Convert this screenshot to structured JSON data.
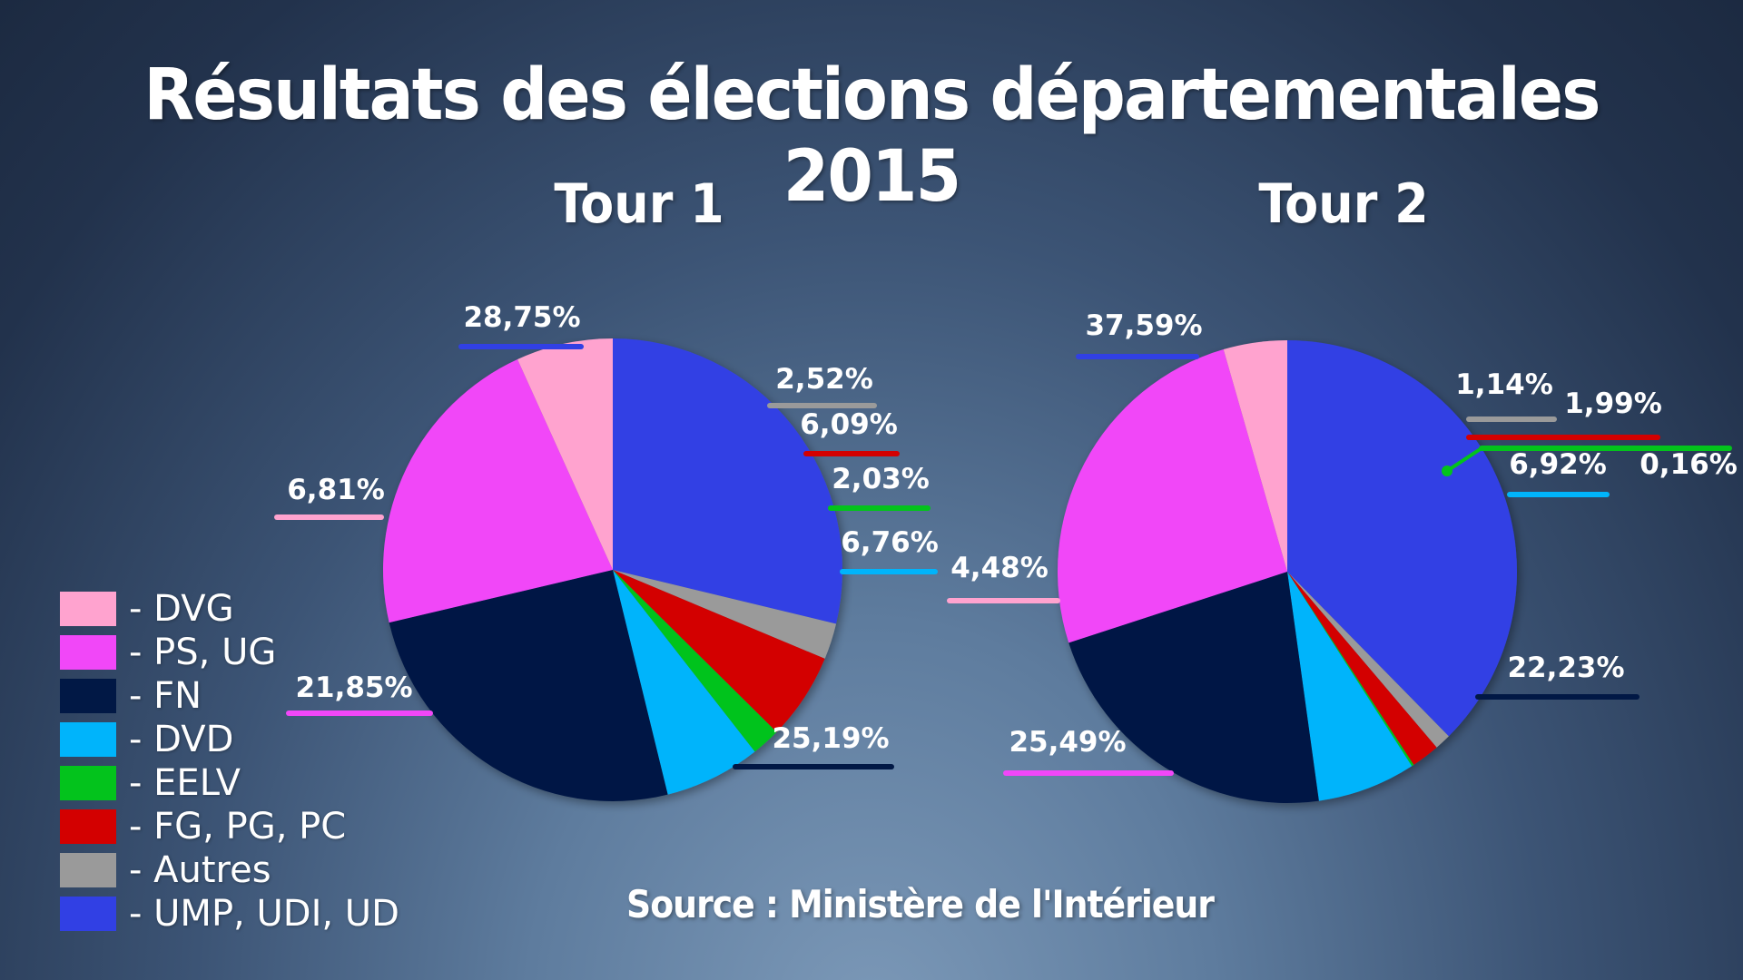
{
  "title": "Résultats des élections départementales 2015",
  "source": "Source : Ministère de l'Intérieur",
  "legend": [
    {
      "label": "- DVG",
      "color": "#ffa3cf"
    },
    {
      "label": "- PS, UG",
      "color": "#f147f8"
    },
    {
      "label": "- FN",
      "color": "#011845"
    },
    {
      "label": "- DVD",
      "color": "#00b4fb"
    },
    {
      "label": "- EELV",
      "color": "#03c31c"
    },
    {
      "label": "- FG, PG, PC",
      "color": "#d30000"
    },
    {
      "label": "- Autres",
      "color": "#9a9a9a"
    },
    {
      "label": "- UMP, UDI, UD",
      "color": "#3140e4"
    }
  ],
  "chart_data": [
    {
      "type": "pie",
      "title": "Tour 1",
      "unit": "%",
      "categories": [
        "UMP, UDI, UD",
        "Autres",
        "FG, PG, PC",
        "EELV",
        "DVD",
        "FN",
        "PS, UG",
        "DVG"
      ],
      "colors": [
        "#3140e4",
        "#9a9a9a",
        "#d30000",
        "#03c31c",
        "#00b4fb",
        "#011845",
        "#f147f8",
        "#ffa3cf"
      ],
      "values": [
        28.75,
        2.52,
        6.09,
        2.03,
        6.76,
        25.19,
        21.85,
        6.81
      ],
      "labels": [
        "28,75%",
        "2,52%",
        "6,09%",
        "2,03%",
        "6,76%",
        "25,19%",
        "21,85%",
        "6,81%"
      ]
    },
    {
      "type": "pie",
      "title": "Tour 2",
      "unit": "%",
      "categories": [
        "UMP, UDI, UD",
        "Autres",
        "FG, PG, PC",
        "EELV",
        "DVD",
        "FN",
        "PS, UG",
        "DVG"
      ],
      "colors": [
        "#3140e4",
        "#9a9a9a",
        "#d30000",
        "#03c31c",
        "#00b4fb",
        "#011845",
        "#f147f8",
        "#ffa3cf"
      ],
      "values": [
        37.59,
        1.14,
        1.99,
        0.16,
        6.92,
        22.23,
        25.49,
        4.48
      ],
      "labels": [
        "37,59%",
        "1,14%",
        "1,99%",
        "0,16%",
        "6,92%",
        "22,23%",
        "25,49%",
        "4,48%"
      ]
    }
  ]
}
